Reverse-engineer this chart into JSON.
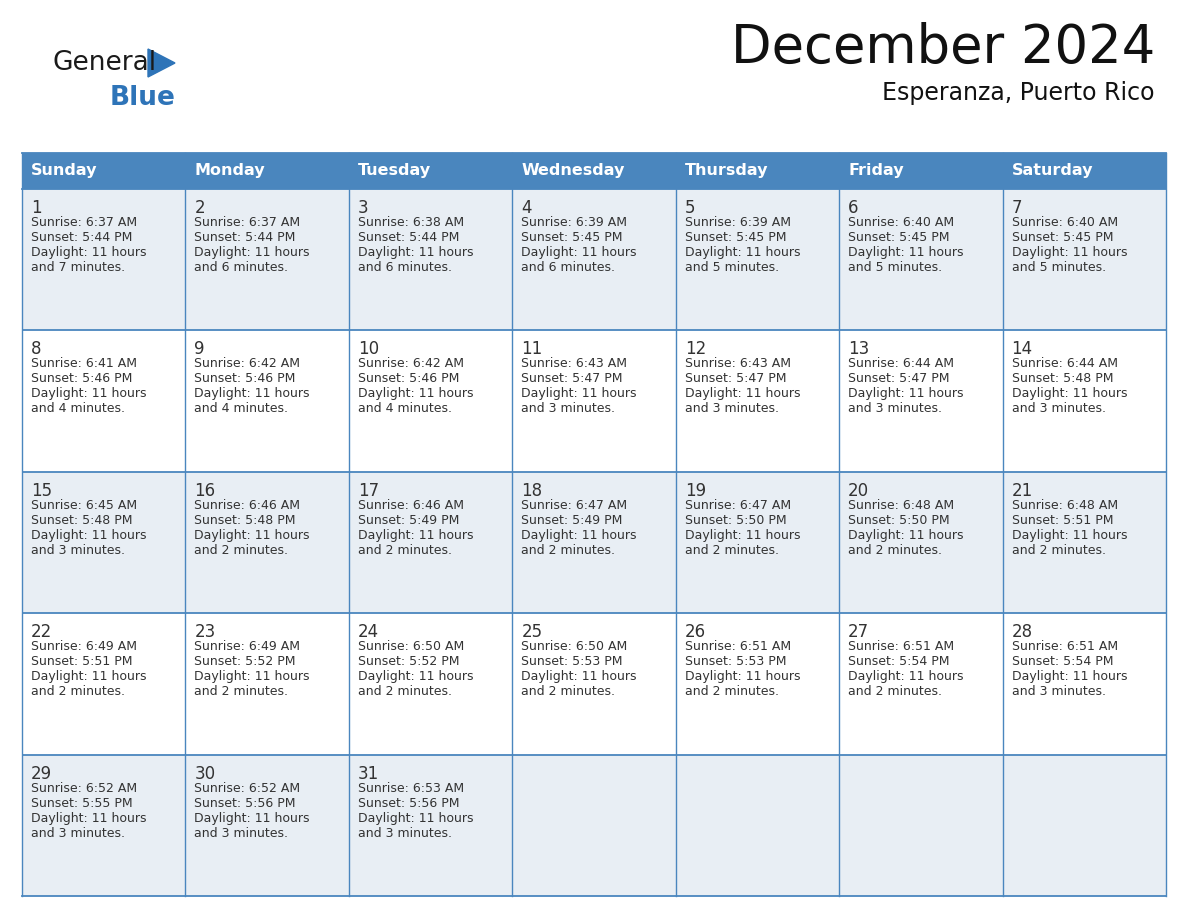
{
  "title": "December 2024",
  "subtitle": "Esperanza, Puerto Rico",
  "days_of_week": [
    "Sunday",
    "Monday",
    "Tuesday",
    "Wednesday",
    "Thursday",
    "Friday",
    "Saturday"
  ],
  "header_bg": "#4a86be",
  "header_text": "#ffffff",
  "cell_bg_even": "#e8eef4",
  "cell_bg_odd": "#ffffff",
  "cell_border": "#4a86be",
  "day_num_color": "#333333",
  "cell_text_color": "#333333",
  "title_color": "#111111",
  "subtitle_color": "#111111",
  "logo_general_color": "#1a1a1a",
  "logo_blue_color": "#2e74b8",
  "calendar": [
    [
      {
        "day": 1,
        "sunrise": "6:37 AM",
        "sunset": "5:44 PM",
        "daylight_h": "11 hours",
        "daylight_m": "and 7 minutes."
      },
      {
        "day": 2,
        "sunrise": "6:37 AM",
        "sunset": "5:44 PM",
        "daylight_h": "11 hours",
        "daylight_m": "and 6 minutes."
      },
      {
        "day": 3,
        "sunrise": "6:38 AM",
        "sunset": "5:44 PM",
        "daylight_h": "11 hours",
        "daylight_m": "and 6 minutes."
      },
      {
        "day": 4,
        "sunrise": "6:39 AM",
        "sunset": "5:45 PM",
        "daylight_h": "11 hours",
        "daylight_m": "and 6 minutes."
      },
      {
        "day": 5,
        "sunrise": "6:39 AM",
        "sunset": "5:45 PM",
        "daylight_h": "11 hours",
        "daylight_m": "and 5 minutes."
      },
      {
        "day": 6,
        "sunrise": "6:40 AM",
        "sunset": "5:45 PM",
        "daylight_h": "11 hours",
        "daylight_m": "and 5 minutes."
      },
      {
        "day": 7,
        "sunrise": "6:40 AM",
        "sunset": "5:45 PM",
        "daylight_h": "11 hours",
        "daylight_m": "and 5 minutes."
      }
    ],
    [
      {
        "day": 8,
        "sunrise": "6:41 AM",
        "sunset": "5:46 PM",
        "daylight_h": "11 hours",
        "daylight_m": "and 4 minutes."
      },
      {
        "day": 9,
        "sunrise": "6:42 AM",
        "sunset": "5:46 PM",
        "daylight_h": "11 hours",
        "daylight_m": "and 4 minutes."
      },
      {
        "day": 10,
        "sunrise": "6:42 AM",
        "sunset": "5:46 PM",
        "daylight_h": "11 hours",
        "daylight_m": "and 4 minutes."
      },
      {
        "day": 11,
        "sunrise": "6:43 AM",
        "sunset": "5:47 PM",
        "daylight_h": "11 hours",
        "daylight_m": "and 3 minutes."
      },
      {
        "day": 12,
        "sunrise": "6:43 AM",
        "sunset": "5:47 PM",
        "daylight_h": "11 hours",
        "daylight_m": "and 3 minutes."
      },
      {
        "day": 13,
        "sunrise": "6:44 AM",
        "sunset": "5:47 PM",
        "daylight_h": "11 hours",
        "daylight_m": "and 3 minutes."
      },
      {
        "day": 14,
        "sunrise": "6:44 AM",
        "sunset": "5:48 PM",
        "daylight_h": "11 hours",
        "daylight_m": "and 3 minutes."
      }
    ],
    [
      {
        "day": 15,
        "sunrise": "6:45 AM",
        "sunset": "5:48 PM",
        "daylight_h": "11 hours",
        "daylight_m": "and 3 minutes."
      },
      {
        "day": 16,
        "sunrise": "6:46 AM",
        "sunset": "5:48 PM",
        "daylight_h": "11 hours",
        "daylight_m": "and 2 minutes."
      },
      {
        "day": 17,
        "sunrise": "6:46 AM",
        "sunset": "5:49 PM",
        "daylight_h": "11 hours",
        "daylight_m": "and 2 minutes."
      },
      {
        "day": 18,
        "sunrise": "6:47 AM",
        "sunset": "5:49 PM",
        "daylight_h": "11 hours",
        "daylight_m": "and 2 minutes."
      },
      {
        "day": 19,
        "sunrise": "6:47 AM",
        "sunset": "5:50 PM",
        "daylight_h": "11 hours",
        "daylight_m": "and 2 minutes."
      },
      {
        "day": 20,
        "sunrise": "6:48 AM",
        "sunset": "5:50 PM",
        "daylight_h": "11 hours",
        "daylight_m": "and 2 minutes."
      },
      {
        "day": 21,
        "sunrise": "6:48 AM",
        "sunset": "5:51 PM",
        "daylight_h": "11 hours",
        "daylight_m": "and 2 minutes."
      }
    ],
    [
      {
        "day": 22,
        "sunrise": "6:49 AM",
        "sunset": "5:51 PM",
        "daylight_h": "11 hours",
        "daylight_m": "and 2 minutes."
      },
      {
        "day": 23,
        "sunrise": "6:49 AM",
        "sunset": "5:52 PM",
        "daylight_h": "11 hours",
        "daylight_m": "and 2 minutes."
      },
      {
        "day": 24,
        "sunrise": "6:50 AM",
        "sunset": "5:52 PM",
        "daylight_h": "11 hours",
        "daylight_m": "and 2 minutes."
      },
      {
        "day": 25,
        "sunrise": "6:50 AM",
        "sunset": "5:53 PM",
        "daylight_h": "11 hours",
        "daylight_m": "and 2 minutes."
      },
      {
        "day": 26,
        "sunrise": "6:51 AM",
        "sunset": "5:53 PM",
        "daylight_h": "11 hours",
        "daylight_m": "and 2 minutes."
      },
      {
        "day": 27,
        "sunrise": "6:51 AM",
        "sunset": "5:54 PM",
        "daylight_h": "11 hours",
        "daylight_m": "and 2 minutes."
      },
      {
        "day": 28,
        "sunrise": "6:51 AM",
        "sunset": "5:54 PM",
        "daylight_h": "11 hours",
        "daylight_m": "and 3 minutes."
      }
    ],
    [
      {
        "day": 29,
        "sunrise": "6:52 AM",
        "sunset": "5:55 PM",
        "daylight_h": "11 hours",
        "daylight_m": "and 3 minutes."
      },
      {
        "day": 30,
        "sunrise": "6:52 AM",
        "sunset": "5:56 PM",
        "daylight_h": "11 hours",
        "daylight_m": "and 3 minutes."
      },
      {
        "day": 31,
        "sunrise": "6:53 AM",
        "sunset": "5:56 PM",
        "daylight_h": "11 hours",
        "daylight_m": "and 3 minutes."
      },
      null,
      null,
      null,
      null
    ]
  ]
}
